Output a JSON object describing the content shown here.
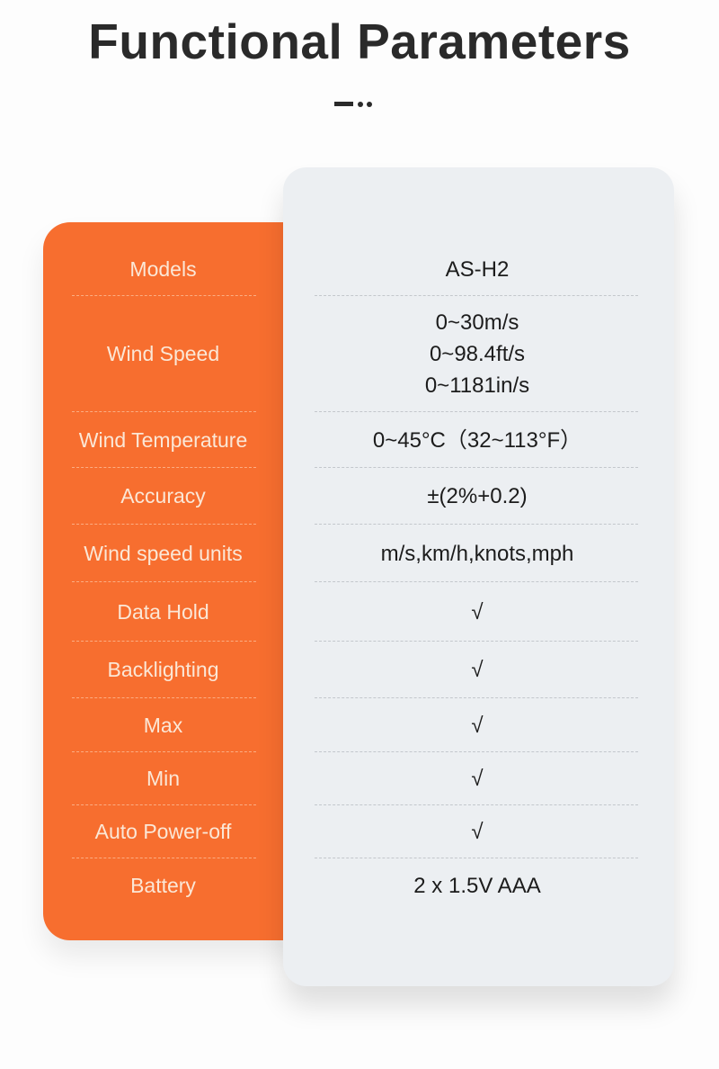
{
  "title": "Functional Parameters",
  "colors": {
    "accent": "#f76e2f",
    "card": "#eceff2",
    "title": "#2a2a2a"
  },
  "rows": [
    {
      "label": "Models",
      "values": [
        "AS-H2"
      ]
    },
    {
      "label": "Wind Speed",
      "values": [
        "0~30m/s",
        "0~98.4ft/s",
        "0~1181in/s"
      ]
    },
    {
      "label": "Wind Temperature",
      "values": [
        "0~45°C（32~113°F）"
      ]
    },
    {
      "label": "Accuracy",
      "values": [
        "±(2%+0.2)"
      ]
    },
    {
      "label": "Wind speed units",
      "values": [
        "m/s,km/h,knots,mph"
      ]
    },
    {
      "label": "Data Hold",
      "values": [
        "√"
      ]
    },
    {
      "label": "Backlighting",
      "values": [
        "√"
      ]
    },
    {
      "label": "Max",
      "values": [
        "√"
      ]
    },
    {
      "label": "Min",
      "values": [
        "√"
      ]
    },
    {
      "label": "Auto Power-off",
      "values": [
        "√"
      ]
    },
    {
      "label": "Battery",
      "values": [
        "2 x 1.5V AAA"
      ]
    }
  ]
}
